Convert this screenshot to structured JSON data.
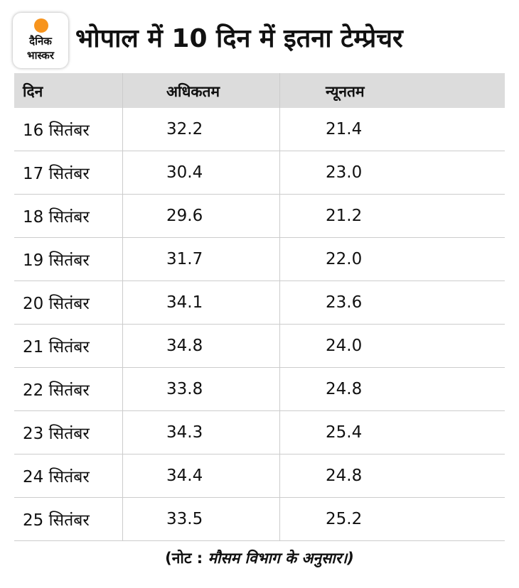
{
  "header": {
    "logo": {
      "line1": "दैनिक",
      "line2": "भास्कर"
    },
    "title": "भोपाल में 10 दिन में इतना टेम्प्रेचर"
  },
  "table": {
    "columns": [
      "दिन",
      "अधिकतम",
      "न्यूनतम"
    ],
    "rows": [
      [
        "16 सितंबर",
        "32.2",
        "21.4"
      ],
      [
        "17 सितंबर",
        "30.4",
        "23.0"
      ],
      [
        "18 सितंबर",
        "29.6",
        "21.2"
      ],
      [
        "19 सितंबर",
        "31.7",
        "22.0"
      ],
      [
        "20 सितंबर",
        "34.1",
        "23.6"
      ],
      [
        "21 सितंबर",
        "34.8",
        "24.0"
      ],
      [
        "22 सितंबर",
        "33.8",
        "24.8"
      ],
      [
        "23 सितंबर",
        "34.3",
        "25.4"
      ],
      [
        "24 सितंबर",
        "34.4",
        "24.8"
      ],
      [
        "25 सितंबर",
        "33.5",
        "25.2"
      ]
    ]
  },
  "note": {
    "label": "(नोट :",
    "text": "मौसम विभाग के अनुसार।)"
  }
}
